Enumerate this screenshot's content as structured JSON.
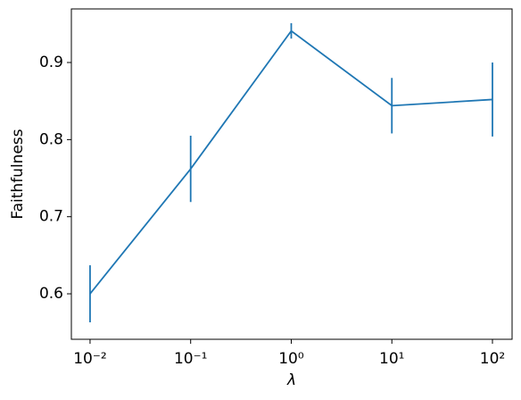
{
  "chart_data": {
    "type": "line",
    "xlabel": "λ",
    "ylabel": "Faithfulness",
    "xscale": "log",
    "x": [
      0.01,
      0.1,
      1,
      10,
      100
    ],
    "series": [
      {
        "color": "#1f77b4",
        "values": [
          0.6,
          0.762,
          0.941,
          0.844,
          0.852
        ],
        "errors": [
          0.037,
          0.043,
          0.01,
          0.036,
          0.048
        ]
      }
    ],
    "xlim": [
      0.00652,
      156.7
    ],
    "ylim": [
      0.541,
      0.9695
    ],
    "xticks": [
      {
        "value": 0.01,
        "label": "10⁻²"
      },
      {
        "value": 0.1,
        "label": "10⁻¹"
      },
      {
        "value": 1,
        "label": "10⁰"
      },
      {
        "value": 10,
        "label": "10¹"
      },
      {
        "value": 100,
        "label": "10²"
      }
    ],
    "yticks": [
      0.6,
      0.7,
      0.8,
      0.9
    ]
  }
}
